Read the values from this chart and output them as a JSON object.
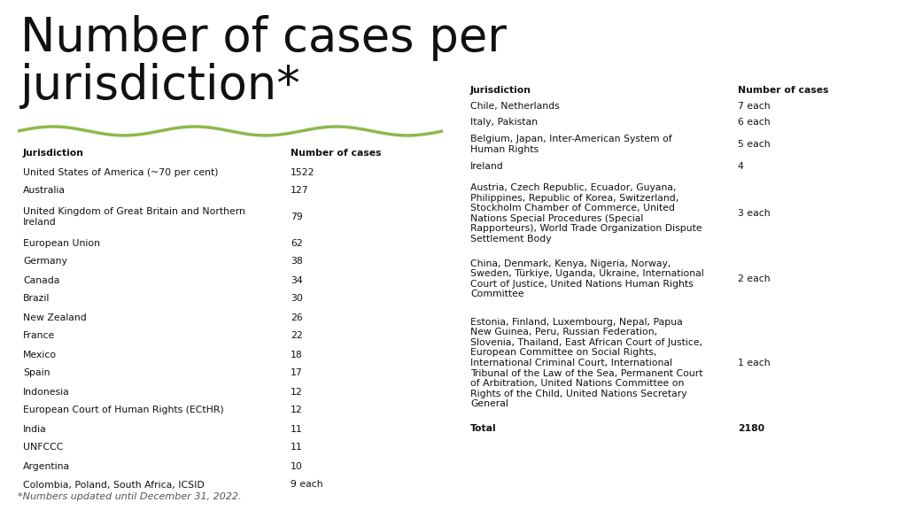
{
  "title": "Number of cases per\njurisdiction*",
  "title_fontsize": 38,
  "footnote": "*Numbers updated until December 31, 2022.",
  "footnote_fontsize": 8,
  "line_color": "#8db84a",
  "bg_color": "#ffffff",
  "table_bg_even": "#e4ecec",
  "table_bg_odd": "#f0f4f4",
  "header_bg": "#ccd8d8",
  "left_table": {
    "headers": [
      "Jurisdiction",
      "Number of cases"
    ],
    "col_split": 0.62,
    "rows": [
      [
        "United States of America (~70 per cent)",
        "1522"
      ],
      [
        "Australia",
        "127"
      ],
      [
        "United Kingdom of Great Britain and Northern\nIreland",
        "79"
      ],
      [
        "European Union",
        "62"
      ],
      [
        "Germany",
        "38"
      ],
      [
        "Canada",
        "34"
      ],
      [
        "Brazil",
        "30"
      ],
      [
        "New Zealand",
        "26"
      ],
      [
        "France",
        "22"
      ],
      [
        "Mexico",
        "18"
      ],
      [
        "Spain",
        "17"
      ],
      [
        "Indonesia",
        "12"
      ],
      [
        "European Court of Human Rights (ECtHR)",
        "12"
      ],
      [
        "India",
        "11"
      ],
      [
        "UNFCCC",
        "11"
      ],
      [
        "Argentina",
        "10"
      ],
      [
        "Colombia, Poland, South Africa, ICSID",
        "9 each"
      ]
    ]
  },
  "right_table": {
    "headers": [
      "Jurisdiction",
      "Number of cases"
    ],
    "col_split": 0.62,
    "rows": [
      [
        "Chile, Netherlands",
        "7 each"
      ],
      [
        "Italy, Pakistan",
        "6 each"
      ],
      [
        "Belgium, Japan, Inter-American System of\nHuman Rights",
        "5 each"
      ],
      [
        "Ireland",
        "4"
      ],
      [
        "Austria, Czech Republic, Ecuador, Guyana,\nPhilippines, Republic of Korea, Switzerland,\nStockholm Chamber of Commerce, United\nNations Special Procedures (Special\nRapporteurs), World Trade Organization Dispute\nSettlement Body",
        "3 each"
      ],
      [
        "China, Denmark, Kenya, Nigeria, Norway,\nSweden, Türkiye, Uganda, Ukraine, International\nCourt of Justice, United Nations Human Rights\nCommittee",
        "2 each"
      ],
      [
        "Estonia, Finland, Luxembourg, Nepal, Papua\nNew Guinea, Peru, Russian Federation,\nSlovenia, Thailand, East African Court of Justice,\nEuropean Committee on Social Rights,\nInternational Criminal Court, International\nTribunal of the Law of the Sea, Permanent Court\nof Arbitration, United Nations Committee on\nRights of the Child, United Nations Secretary\nGeneral",
        "1 each"
      ],
      [
        "Total",
        "2180"
      ]
    ]
  }
}
